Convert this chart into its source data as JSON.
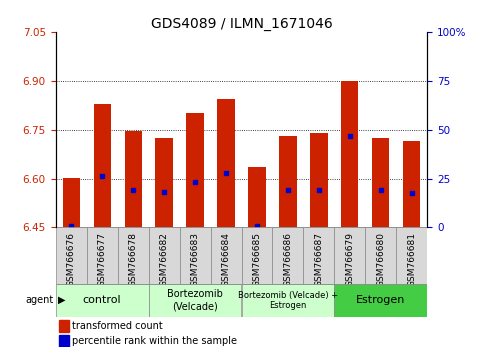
{
  "title": "GDS4089 / ILMN_1671046",
  "samples": [
    "GSM766676",
    "GSM766677",
    "GSM766678",
    "GSM766682",
    "GSM766683",
    "GSM766684",
    "GSM766685",
    "GSM766686",
    "GSM766687",
    "GSM766679",
    "GSM766680",
    "GSM766681"
  ],
  "bar_tops": [
    6.601,
    6.83,
    6.745,
    6.725,
    6.8,
    6.845,
    6.635,
    6.73,
    6.74,
    6.9,
    6.725,
    6.715
  ],
  "blue_dot_values": [
    6.455,
    6.607,
    6.565,
    6.56,
    6.588,
    6.618,
    6.455,
    6.565,
    6.565,
    6.73,
    6.565,
    6.555
  ],
  "y_min": 6.45,
  "y_max": 7.05,
  "y_ticks_left": [
    6.45,
    6.6,
    6.75,
    6.9,
    7.05
  ],
  "y_ticks_right": [
    0,
    25,
    50,
    75,
    100
  ],
  "bar_color": "#cc2200",
  "dot_color": "#0000cc",
  "bar_width": 0.55,
  "groups": [
    {
      "label": "control",
      "indices": [
        0,
        1,
        2
      ],
      "color": "#ccffcc",
      "fontsize": 8
    },
    {
      "label": "Bortezomib\n(Velcade)",
      "indices": [
        3,
        4,
        5
      ],
      "color": "#ccffcc",
      "fontsize": 7
    },
    {
      "label": "Bortezomib (Velcade) +\nEstrogen",
      "indices": [
        6,
        7,
        8
      ],
      "color": "#ccffcc",
      "fontsize": 6
    },
    {
      "label": "Estrogen",
      "indices": [
        9,
        10,
        11
      ],
      "color": "#44cc44",
      "fontsize": 8
    }
  ],
  "agent_label": "agent",
  "legend_bar_label": "transformed count",
  "legend_dot_label": "percentile rank within the sample",
  "tick_label_color_left": "#cc2200",
  "tick_label_color_right": "#0000cc",
  "title_fontsize": 10,
  "tick_fontsize": 7.5,
  "sample_fontsize": 6.5,
  "bg_gray": "#d8d8d8",
  "bg_white": "#ffffff"
}
